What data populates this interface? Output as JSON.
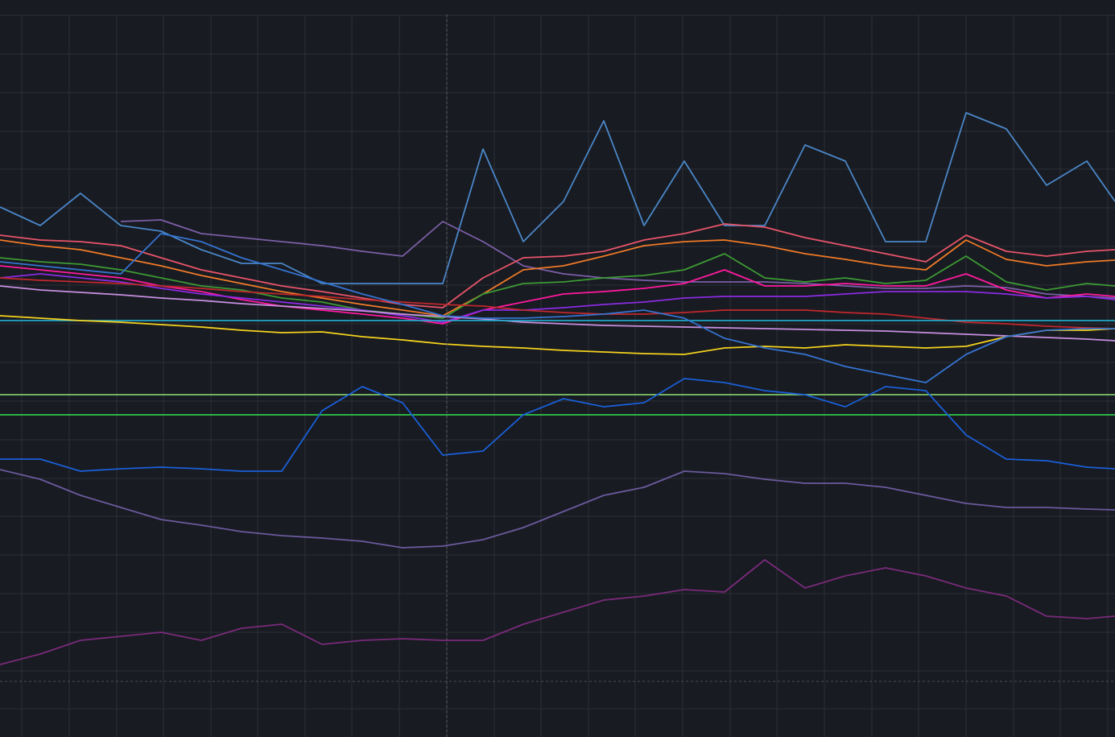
{
  "chart_data": {
    "type": "line",
    "grid": true,
    "xlim": [
      0,
      1385
    ],
    "ylim": [
      0,
      915
    ],
    "xticks": [
      27,
      86,
      145,
      203,
      262,
      320,
      379,
      437,
      496,
      555,
      614,
      672,
      731,
      789,
      848,
      907,
      965,
      1024,
      1083,
      1141,
      1200,
      1259,
      1317,
      1376
    ],
    "yticks": [
      35,
      82,
      130,
      178,
      226,
      274,
      321,
      369,
      417,
      465,
      513,
      561,
      609,
      657,
      705,
      752,
      800,
      848,
      896
    ],
    "x": [
      0,
      50,
      100,
      150,
      200,
      250,
      300,
      350,
      400,
      450,
      500,
      550,
      600,
      650,
      700,
      750,
      800,
      850,
      900,
      950,
      1000,
      1050,
      1100,
      1150,
      1200,
      1250,
      1300,
      1350,
      1385
    ],
    "series": [
      {
        "color": "#4a86c8",
        "values": [
          658,
          635,
          675,
          635,
          628,
          605,
          588,
          588,
          563,
          563,
          563,
          563,
          730,
          615,
          665,
          765,
          635,
          715,
          635,
          635,
          735,
          715,
          615,
          615,
          775,
          755,
          685,
          715,
          665
        ]
      },
      {
        "color": "#7b5ea7",
        "values": [
          null,
          null,
          null,
          640,
          642,
          625,
          620,
          615,
          610,
          603,
          597,
          640,
          615,
          585,
          575,
          570,
          567,
          565,
          565,
          565,
          563,
          560,
          557,
          557,
          560,
          558,
          550,
          547,
          545
        ]
      },
      {
        "color": "#e8546a",
        "values": [
          623,
          617,
          615,
          610,
          595,
          580,
          570,
          560,
          553,
          545,
          537,
          533,
          570,
          595,
          597,
          603,
          617,
          625,
          637,
          633,
          620,
          610,
          600,
          590,
          623,
          603,
          597,
          603,
          605
        ]
      },
      {
        "color": "#f07a28",
        "values": [
          617,
          610,
          605,
          595,
          585,
          573,
          563,
          553,
          545,
          537,
          530,
          523,
          550,
          580,
          585,
          597,
          610,
          615,
          617,
          610,
          600,
          593,
          585,
          580,
          617,
          593,
          585,
          590,
          592
        ]
      },
      {
        "color": "#3d9a35",
        "values": [
          595,
          590,
          587,
          580,
          570,
          560,
          555,
          545,
          540,
          530,
          525,
          520,
          550,
          563,
          565,
          570,
          573,
          580,
          600,
          570,
          565,
          570,
          563,
          567,
          597,
          565,
          555,
          563,
          560
        ]
      },
      {
        "color": "#ff1aa0",
        "values": [
          585,
          580,
          575,
          570,
          560,
          553,
          543,
          535,
          530,
          525,
          520,
          513,
          530,
          540,
          550,
          553,
          557,
          563,
          580,
          560,
          560,
          563,
          560,
          560,
          575,
          555,
          545,
          550,
          547
        ]
      },
      {
        "color": "#8a2be2",
        "values": [
          570,
          575,
          570,
          565,
          557,
          550,
          545,
          540,
          535,
          530,
          523,
          515,
          530,
          530,
          533,
          537,
          540,
          545,
          547,
          547,
          547,
          550,
          553,
          553,
          553,
          550,
          545,
          547,
          543
        ]
      },
      {
        "color": "#c0282d",
        "values": [
          570,
          567,
          565,
          563,
          560,
          557,
          553,
          550,
          547,
          543,
          540,
          537,
          535,
          530,
          527,
          525,
          525,
          527,
          530,
          530,
          530,
          527,
          525,
          520,
          515,
          513,
          510,
          508,
          507
        ]
      },
      {
        "color": "#c78fe0",
        "values": [
          560,
          555,
          552,
          549,
          545,
          542,
          538,
          535,
          532,
          529,
          525,
          522,
          519,
          515,
          513,
          511,
          510,
          509,
          508,
          507,
          506,
          505,
          504,
          502,
          500,
          498,
          496,
          494,
          492
        ]
      },
      {
        "color": "#22a7c9",
        "values": [
          517,
          517,
          517,
          517,
          517,
          517,
          517,
          517,
          517,
          517,
          517,
          517,
          517,
          517,
          517,
          517,
          517,
          517,
          517,
          517,
          517,
          517,
          517,
          517,
          517,
          517,
          517,
          517,
          517
        ]
      },
      {
        "color": "#f5d21e",
        "values": [
          523,
          520,
          517,
          515,
          512,
          509,
          505,
          502,
          503,
          497,
          493,
          488,
          485,
          483,
          480,
          478,
          476,
          475,
          483,
          485,
          483,
          487,
          485,
          483,
          485,
          497,
          505,
          505,
          507
        ]
      },
      {
        "color": "#3573d0",
        "values": [
          590,
          585,
          580,
          575,
          625,
          615,
          595,
          580,
          565,
          550,
          537,
          523,
          520,
          520,
          522,
          525,
          530,
          520,
          495,
          483,
          475,
          460,
          450,
          440,
          475,
          497,
          505,
          507,
          507
        ]
      },
      {
        "color": "#7ec86a",
        "values": [
          425,
          425,
          425,
          425,
          425,
          425,
          425,
          425,
          425,
          425,
          425,
          425,
          425,
          425,
          425,
          425,
          425,
          425,
          425,
          425,
          425,
          425,
          425,
          425,
          425,
          425,
          425,
          425,
          425
        ]
      },
      {
        "color": "#2fc84a",
        "values": [
          400,
          400,
          400,
          400,
          400,
          400,
          400,
          400,
          400,
          400,
          400,
          400,
          400,
          400,
          400,
          400,
          400,
          400,
          400,
          400,
          400,
          400,
          400,
          400,
          400,
          400,
          400,
          400,
          400
        ]
      },
      {
        "color": "#1a5fd8",
        "values": [
          345,
          345,
          330,
          333,
          335,
          333,
          330,
          330,
          405,
          435,
          415,
          350,
          355,
          400,
          420,
          410,
          415,
          445,
          440,
          430,
          425,
          410,
          435,
          430,
          375,
          345,
          343,
          335,
          333
        ]
      },
      {
        "color": "#6b5a9e",
        "values": [
          332,
          320,
          300,
          285,
          270,
          263,
          255,
          250,
          247,
          243,
          235,
          237,
          245,
          260,
          280,
          300,
          310,
          330,
          327,
          320,
          315,
          315,
          310,
          300,
          290,
          285,
          285,
          283,
          282
        ]
      },
      {
        "color": "#7a2a7a",
        "values": [
          90,
          103,
          120,
          125,
          130,
          120,
          135,
          140,
          115,
          120,
          122,
          120,
          120,
          140,
          155,
          170,
          175,
          183,
          180,
          220,
          185,
          200,
          210,
          200,
          185,
          175,
          150,
          147,
          150
        ]
      }
    ]
  }
}
